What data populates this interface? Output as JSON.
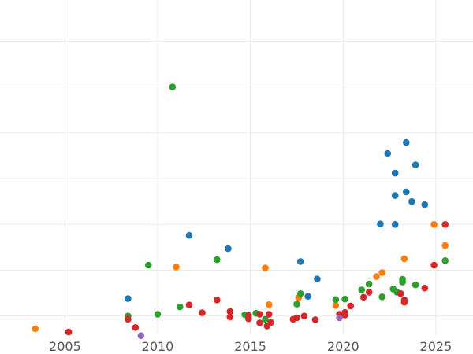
{
  "chart_data": {
    "type": "scatter",
    "title": "",
    "xlabel": "",
    "ylabel": "",
    "grid": true,
    "xlim": [
      2001.5,
      2027
    ],
    "ylim": [
      -0.4,
      6.9
    ],
    "x_ticks": [
      2005,
      2010,
      2015,
      2020,
      2025
    ],
    "x_tick_labels": [
      "2005",
      "2010",
      "2015",
      "2020",
      "2025"
    ],
    "y_gridlines": [
      0,
      1,
      2,
      3,
      4,
      5,
      6
    ],
    "series": [
      {
        "color": "#1f77b4",
        "points": [
          [
            2008.4,
            0.38
          ],
          [
            2011.7,
            1.76
          ],
          [
            2013.8,
            1.47
          ],
          [
            2017.7,
            1.19
          ],
          [
            2018.1,
            0.43
          ],
          [
            2018.6,
            0.81
          ],
          [
            2022.0,
            2.01
          ],
          [
            2022.4,
            3.55
          ],
          [
            2022.8,
            3.12
          ],
          [
            2022.8,
            2.63
          ],
          [
            2022.8,
            2.0
          ],
          [
            2023.4,
            3.79
          ],
          [
            2023.4,
            2.71
          ],
          [
            2023.7,
            2.5
          ],
          [
            2023.9,
            3.3
          ],
          [
            2024.4,
            2.43
          ]
        ]
      },
      {
        "color": "#ff7f0e",
        "points": [
          [
            2003.4,
            -0.28
          ],
          [
            2011.0,
            1.07
          ],
          [
            2015.8,
            1.05
          ],
          [
            2016.0,
            0.25
          ],
          [
            2017.6,
            0.4
          ],
          [
            2019.6,
            0.23
          ],
          [
            2021.8,
            0.86
          ],
          [
            2022.1,
            0.95
          ],
          [
            2023.3,
            1.25
          ],
          [
            2024.9,
            2.0
          ],
          [
            2025.5,
            1.54
          ]
        ]
      },
      {
        "color": "#2ca02c",
        "points": [
          [
            2008.4,
            0.0
          ],
          [
            2009.5,
            1.11
          ],
          [
            2010.0,
            0.04
          ],
          [
            2010.8,
            5.0
          ],
          [
            2011.2,
            0.2
          ],
          [
            2013.2,
            1.23
          ],
          [
            2014.7,
            0.03
          ],
          [
            2015.3,
            0.06
          ],
          [
            2015.8,
            -0.07
          ],
          [
            2017.5,
            0.26
          ],
          [
            2017.7,
            0.49
          ],
          [
            2019.6,
            0.36
          ],
          [
            2020.1,
            0.37
          ],
          [
            2021.0,
            0.57
          ],
          [
            2021.4,
            0.7
          ],
          [
            2022.1,
            0.42
          ],
          [
            2022.7,
            0.59
          ],
          [
            2022.9,
            0.52
          ],
          [
            2023.2,
            0.8
          ],
          [
            2023.2,
            0.74
          ],
          [
            2023.9,
            0.68
          ],
          [
            2025.5,
            1.21
          ]
        ]
      },
      {
        "color": "#d62728",
        "points": [
          [
            2005.2,
            -0.35
          ],
          [
            2008.4,
            -0.07
          ],
          [
            2008.8,
            -0.25
          ],
          [
            2011.7,
            0.24
          ],
          [
            2012.4,
            0.07
          ],
          [
            2013.2,
            0.35
          ],
          [
            2013.9,
            0.1
          ],
          [
            2013.9,
            -0.02
          ],
          [
            2014.9,
            0.01
          ],
          [
            2014.9,
            -0.06
          ],
          [
            2015.5,
            0.04
          ],
          [
            2015.5,
            -0.15
          ],
          [
            2015.9,
            -0.22
          ],
          [
            2016.0,
            0.04
          ],
          [
            2016.1,
            -0.14
          ],
          [
            2017.3,
            -0.07
          ],
          [
            2017.5,
            -0.04
          ],
          [
            2017.9,
            0.0
          ],
          [
            2018.5,
            -0.08
          ],
          [
            2019.8,
            0.04
          ],
          [
            2020.1,
            0.02
          ],
          [
            2020.1,
            0.08
          ],
          [
            2020.4,
            0.22
          ],
          [
            2021.1,
            0.41
          ],
          [
            2021.4,
            0.52
          ],
          [
            2023.1,
            0.49
          ],
          [
            2023.3,
            0.35
          ],
          [
            2023.3,
            0.3
          ],
          [
            2024.4,
            0.61
          ],
          [
            2024.9,
            1.11
          ],
          [
            2025.5,
            2.0
          ]
        ]
      },
      {
        "color": "#9467bd",
        "points": [
          [
            2009.1,
            -0.43
          ],
          [
            2019.8,
            -0.04
          ]
        ]
      }
    ]
  }
}
